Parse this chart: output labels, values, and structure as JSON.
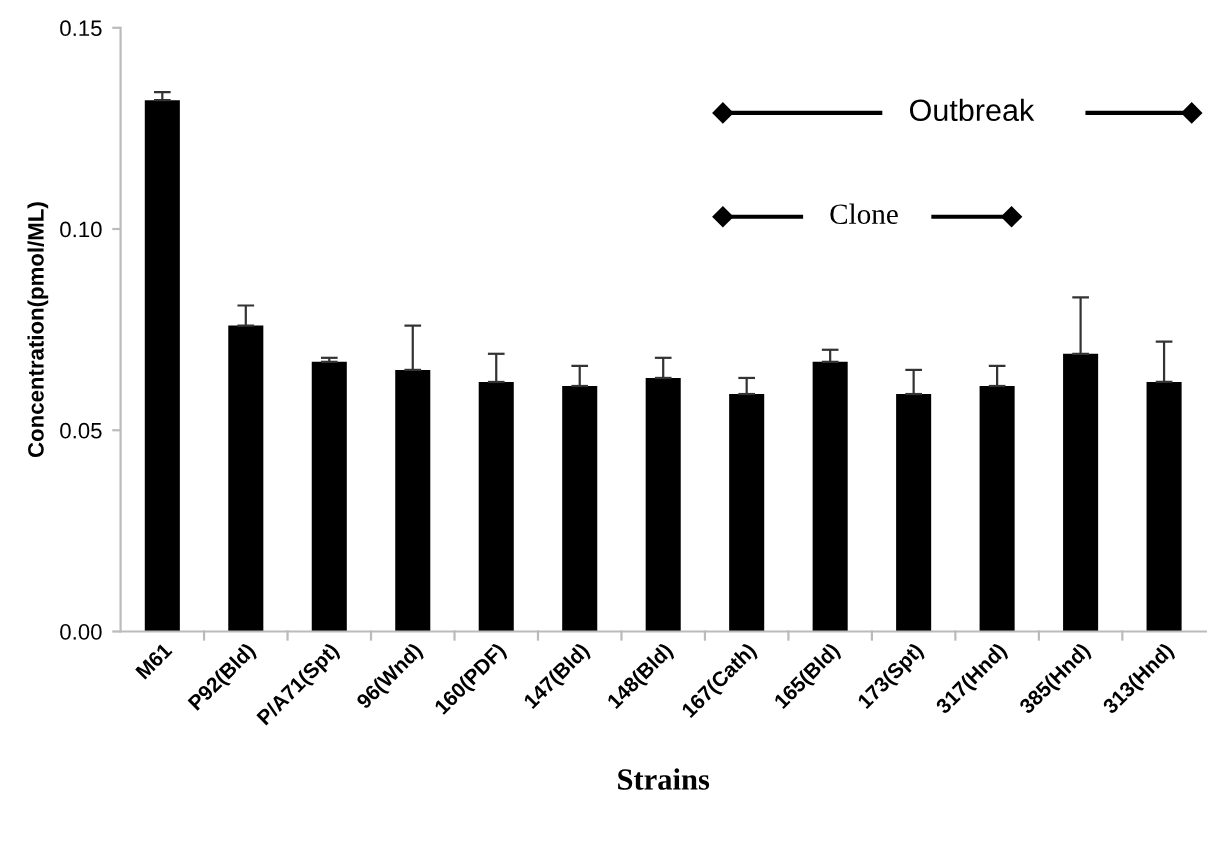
{
  "chart_data": {
    "type": "bar",
    "xlabel": "Strains",
    "ylabel": "Concentration(pmol/ML)",
    "categories": [
      "M61",
      "P92(Bld)",
      "P/A71(Spt)",
      "96(Wnd)",
      "160(PDF)",
      "147(Bld)",
      "148(Bld)",
      "167(Cath)",
      "165(Bld)",
      "173(Spt)",
      "317(Hnd)",
      "385(Hnd)",
      "313(Hnd)"
    ],
    "values": [
      0.132,
      0.076,
      0.067,
      0.065,
      0.062,
      0.061,
      0.063,
      0.059,
      0.067,
      0.059,
      0.061,
      0.069,
      0.062
    ],
    "errors": [
      [
        0.132,
        0.134
      ],
      [
        0.076,
        0.081
      ],
      [
        0.067,
        0.068
      ],
      [
        0.065,
        0.076
      ],
      [
        0.062,
        0.069
      ],
      [
        0.061,
        0.066
      ],
      [
        0.063,
        0.068
      ],
      [
        0.059,
        0.063
      ],
      [
        0.067,
        0.07
      ],
      [
        0.059,
        0.065
      ],
      [
        0.061,
        0.066
      ],
      [
        0.069,
        0.083
      ],
      [
        0.062,
        0.072
      ]
    ],
    "color": "#000000",
    "ylim": [
      0,
      0.15
    ],
    "yticks": [
      {
        "value": 0,
        "label": "0.00"
      },
      {
        "value": 0.05,
        "label": "0.05"
      },
      {
        "value": 0.1,
        "label": "0.10"
      },
      {
        "value": 0.15,
        "label": "0.15"
      }
    ],
    "annotations": [
      "Outbreak",
      "Clone"
    ],
    "grid": false,
    "legend": false
  }
}
